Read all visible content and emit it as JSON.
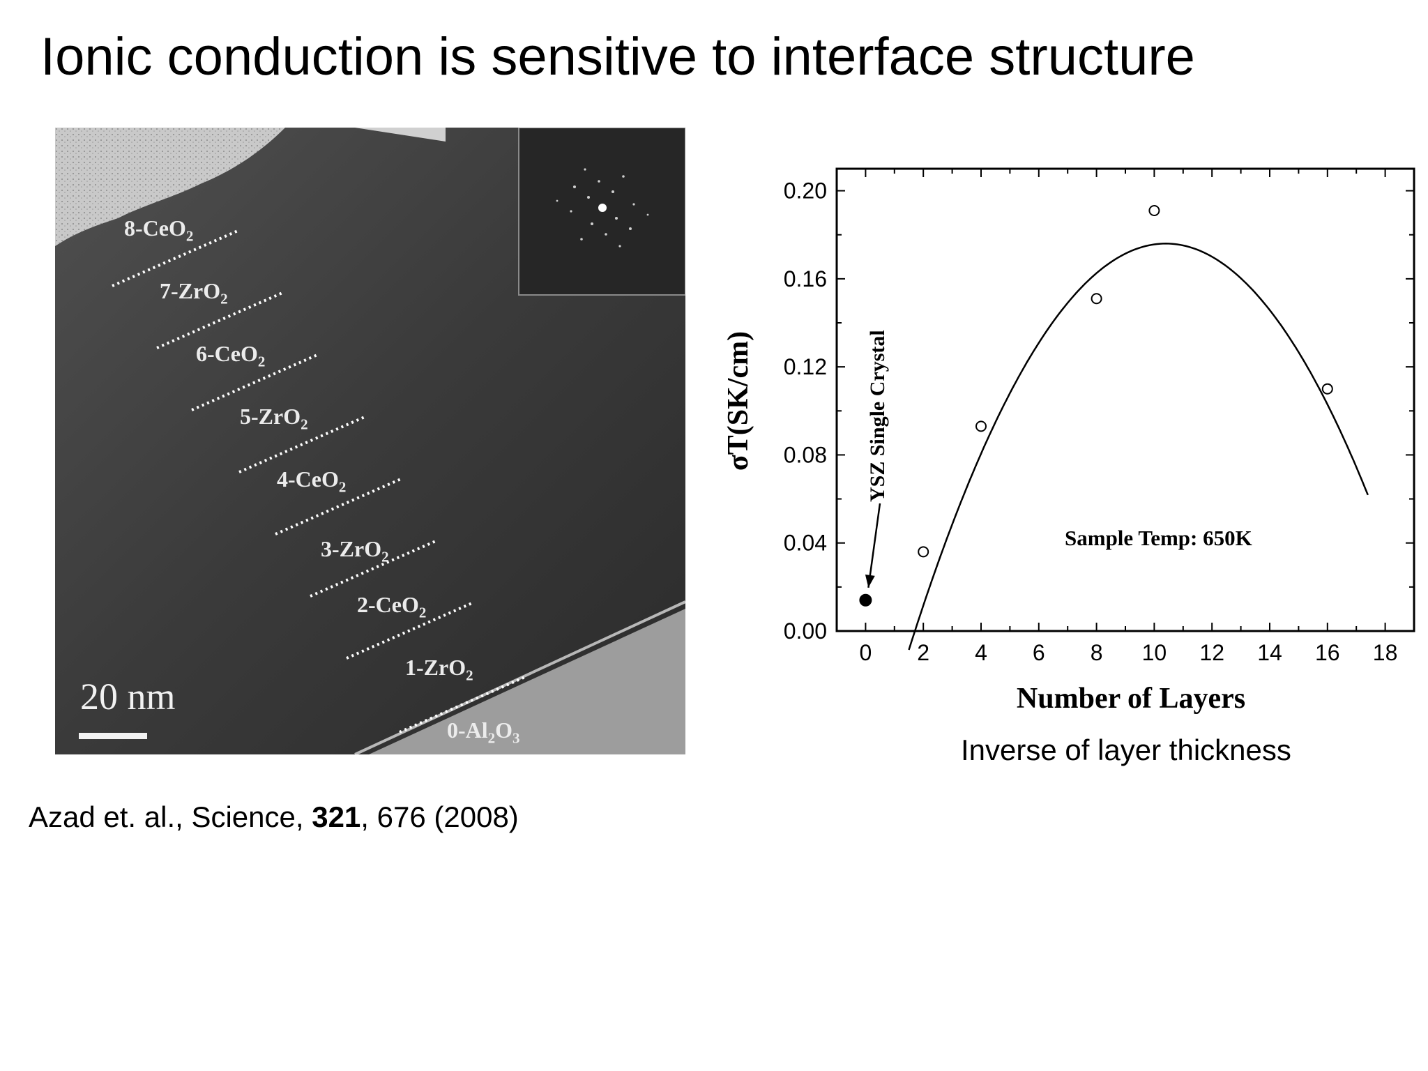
{
  "slide": {
    "title": "Ionic conduction is sensitive to interface structure",
    "caption": "Inverse of layer thickness"
  },
  "citation": {
    "authors_journal": "Azad et. al., Science, ",
    "volume": "321",
    "pages_year": ", 676 (2008)"
  },
  "tem_image": {
    "scale_bar_label": "20 nm",
    "layers": [
      {
        "num": "8",
        "sym": "CeO",
        "sub": "2",
        "sym2": "",
        "sub2": ""
      },
      {
        "num": "7",
        "sym": "ZrO",
        "sub": "2",
        "sym2": "",
        "sub2": ""
      },
      {
        "num": "6",
        "sym": "CeO",
        "sub": "2",
        "sym2": "",
        "sub2": ""
      },
      {
        "num": "5",
        "sym": "ZrO",
        "sub": "2",
        "sym2": "",
        "sub2": ""
      },
      {
        "num": "4",
        "sym": "CeO",
        "sub": "2",
        "sym2": "",
        "sub2": ""
      },
      {
        "num": "3",
        "sym": "ZrO",
        "sub": "2",
        "sym2": "",
        "sub2": ""
      },
      {
        "num": "2",
        "sym": "CeO",
        "sub": "2",
        "sym2": "",
        "sub2": ""
      },
      {
        "num": "1",
        "sym": "ZrO",
        "sub": "2",
        "sym2": "",
        "sub2": ""
      },
      {
        "num": "0",
        "sym": "Al",
        "sub": "2",
        "sym2": "O",
        "sub2": "3"
      }
    ]
  },
  "chart_data": {
    "type": "scatter",
    "title": "",
    "xlabel": "Number of Layers",
    "ylabel": "σT(SK/cm)",
    "xlim": [
      -1,
      19
    ],
    "ylim": [
      0,
      0.21
    ],
    "xticks": [
      0,
      2,
      4,
      6,
      8,
      10,
      12,
      14,
      16,
      18
    ],
    "yticks": [
      0.0,
      0.04,
      0.08,
      0.12,
      0.16,
      0.2
    ],
    "ytick_labels": [
      "0.00",
      "0.04",
      "0.08",
      "0.12",
      "0.16",
      "0.20"
    ],
    "grid": false,
    "series": [
      {
        "marker": "open-circle",
        "x": [
          2,
          4,
          8,
          10,
          16
        ],
        "y": [
          0.036,
          0.093,
          0.151,
          0.191,
          0.11
        ]
      },
      {
        "marker": "filled-circle",
        "x": [
          0
        ],
        "y": [
          0.014
        ]
      }
    ],
    "fit_curve": {
      "vertex_x": 10.4,
      "vertex_y": 0.176,
      "k": 0.00233,
      "x_range": [
        1.5,
        17.4
      ]
    },
    "annotations": [
      {
        "text": "YSZ Single Crystal",
        "points_to": [
          0,
          0.014
        ]
      },
      {
        "text": "Sample Temp: 650K"
      }
    ]
  }
}
